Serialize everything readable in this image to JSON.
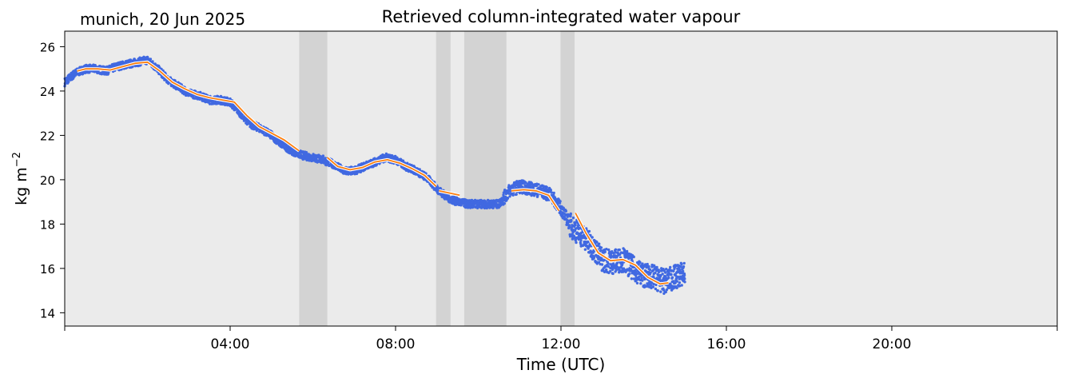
{
  "header": {
    "location_label": "munich, 20 Jun 2025"
  },
  "chart_data": {
    "type": "line",
    "title": "Retrieved column-integrated water vapour",
    "xlabel": "Time (UTC)",
    "ylabel_base": "kg m",
    "ylabel_exponent": "−2",
    "xlim_hours": [
      0,
      24
    ],
    "ylim": [
      13.4,
      26.7
    ],
    "x_ticks": [
      {
        "hour": 0,
        "label": ""
      },
      {
        "hour": 4,
        "label": "04:00"
      },
      {
        "hour": 8,
        "label": "08:00"
      },
      {
        "hour": 12,
        "label": "12:00"
      },
      {
        "hour": 16,
        "label": "16:00"
      },
      {
        "hour": 20,
        "label": "20:00"
      },
      {
        "hour": 24,
        "label": ""
      }
    ],
    "y_ticks": [
      14,
      16,
      18,
      20,
      22,
      24,
      26
    ],
    "background_color": "#ebebeb",
    "shaded_color": "#d3d3d3",
    "shaded_intervals_hours": [
      [
        5.67,
        6.35
      ],
      [
        8.98,
        9.33
      ],
      [
        9.66,
        10.68
      ],
      [
        11.99,
        12.33
      ]
    ],
    "series": [
      {
        "style": "scatter",
        "color": "#4169e1",
        "x_hours": [
          0.0,
          0.25,
          0.5,
          0.75,
          1.0,
          1.25,
          1.5,
          1.75,
          2.0,
          2.25,
          2.5,
          2.75,
          3.0,
          3.25,
          3.5,
          3.75,
          4.0,
          4.25,
          4.5,
          4.75,
          5.0,
          5.25,
          5.5,
          5.75,
          6.0,
          6.25,
          6.5,
          6.75,
          7.0,
          7.25,
          7.5,
          7.75,
          8.0,
          8.25,
          8.5,
          8.75,
          9.0,
          9.25,
          9.5,
          9.75,
          10.0,
          10.25,
          10.5,
          10.75,
          11.0,
          11.25,
          11.5,
          11.75,
          12.0,
          12.25,
          12.5,
          12.75,
          13.0,
          13.25,
          13.5,
          13.75,
          14.0,
          14.25,
          14.5,
          14.75,
          15.0
        ],
        "y": [
          24.4,
          24.8,
          25.0,
          25.0,
          24.9,
          25.1,
          25.2,
          25.3,
          25.4,
          25.0,
          24.5,
          24.2,
          23.9,
          23.8,
          23.6,
          23.6,
          23.5,
          23.0,
          22.5,
          22.3,
          22.0,
          21.6,
          21.3,
          21.1,
          21.0,
          20.9,
          20.7,
          20.4,
          20.4,
          20.6,
          20.8,
          21.0,
          20.9,
          20.6,
          20.4,
          20.1,
          19.6,
          19.2,
          19.0,
          18.9,
          18.9,
          18.9,
          18.9,
          19.5,
          19.7,
          19.6,
          19.5,
          19.3,
          18.7,
          17.9,
          17.5,
          17.0,
          16.4,
          16.3,
          16.4,
          16.0,
          15.7,
          15.6,
          15.4,
          15.6,
          15.8
        ]
      },
      {
        "style": "line",
        "color": "#ff7f0e",
        "segments": [
          {
            "x_hours": [
              0.3,
              0.5,
              0.8,
              1.1,
              1.4,
              1.7,
              2.0,
              2.3,
              2.6,
              2.9,
              3.2,
              3.5,
              3.8,
              4.1,
              4.4,
              4.7,
              5.0,
              5.3,
              5.67
            ],
            "y": [
              24.9,
              25.0,
              25.0,
              24.95,
              25.1,
              25.25,
              25.3,
              24.9,
              24.4,
              24.1,
              23.85,
              23.7,
              23.6,
              23.5,
              22.9,
              22.4,
              22.1,
              21.8,
              21.3
            ]
          },
          {
            "x_hours": [
              6.35,
              6.6,
              6.9,
              7.2,
              7.5,
              7.8,
              8.1,
              8.4,
              8.7,
              8.98
            ],
            "y": [
              21.0,
              20.6,
              20.45,
              20.55,
              20.8,
              20.9,
              20.75,
              20.5,
              20.2,
              19.7
            ]
          },
          {
            "x_hours": [
              9.05,
              9.3,
              9.55
            ],
            "y": [
              19.5,
              19.4,
              19.3
            ]
          },
          {
            "x_hours": [
              10.8,
              11.1,
              11.4,
              11.7,
              11.95
            ],
            "y": [
              19.5,
              19.55,
              19.5,
              19.3,
              18.6
            ]
          },
          {
            "x_hours": [
              12.35,
              12.6,
              12.9,
              13.2,
              13.5,
              13.8,
              14.1,
              14.4,
              14.6
            ],
            "y": [
              18.5,
              17.6,
              16.7,
              16.35,
              16.4,
              16.15,
              15.6,
              15.3,
              15.35
            ]
          }
        ]
      }
    ]
  }
}
